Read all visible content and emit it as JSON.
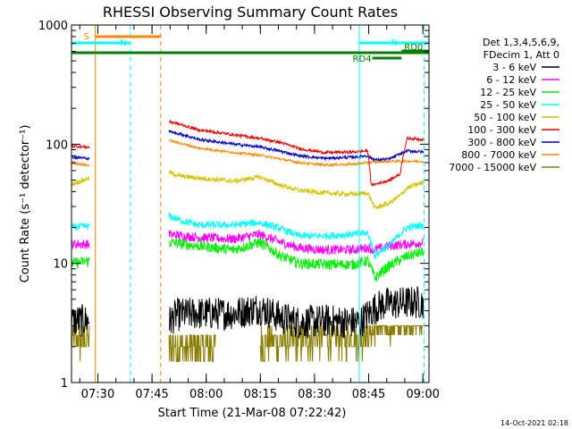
{
  "chart_data": {
    "type": "line",
    "title": "RHESSI Observing Summary Count Rates",
    "xlabel": "Start Time (21-Mar-08 07:22:42)",
    "ylabel": "Count Rate (s⁻¹ detector⁻¹)",
    "yscale": "log",
    "ylim": [
      1,
      1000
    ],
    "xlim_minutes": [
      0,
      99
    ],
    "x_tick_labels": [
      "07:30",
      "07:45",
      "08:00",
      "08:15",
      "08:30",
      "08:45",
      "09:00"
    ],
    "x_tick_minutes": [
      7.3,
      22.3,
      37.3,
      52.3,
      67.3,
      82.3,
      97.3
    ],
    "y_tick_labels": [
      "1",
      "10",
      "100",
      "1000"
    ],
    "y_tick_values": [
      1,
      10,
      100,
      1000
    ],
    "grid": false,
    "legend": {
      "position": "right",
      "header": [
        "Det 1,3,4,5,6,9,",
        "FDecim 1, Att 0"
      ],
      "entries": [
        {
          "label": "3 - 6 keV",
          "color": "#000000"
        },
        {
          "label": "6 - 12 keV",
          "color": "#ff00ff"
        },
        {
          "label": "12 - 25 keV",
          "color": "#00ee00"
        },
        {
          "label": "25 - 50 keV",
          "color": "#00ffff"
        },
        {
          "label": "50 - 100 keV",
          "color": "#d4c400"
        },
        {
          "label": "100 - 300 keV",
          "color": "#ee0000"
        },
        {
          "label": "300 - 800 keV",
          "color": "#0000cc"
        },
        {
          "label": "800 - 7000 keV",
          "color": "#ff8800"
        },
        {
          "label": "7000 - 15000 keV",
          "color": "#8a7d00"
        }
      ]
    },
    "intervals": [
      {
        "label": "S",
        "color": "#ff8800",
        "start": 6.6,
        "end": 24.7,
        "level": 1
      },
      {
        "label": "N",
        "color": "#00ffff",
        "start": 0,
        "end": 16.3,
        "level": 2
      },
      {
        "label": "N",
        "color": "#00ffff",
        "start": 79.7,
        "end": 99,
        "level": 2
      },
      {
        "label": "RD0",
        "color": "#008000",
        "start": 91.4,
        "end": 99,
        "level": 3
      },
      {
        "label": "",
        "color": "#008000",
        "start": 0,
        "end": 99,
        "level": 4
      },
      {
        "label": "RD4",
        "color": "#008000",
        "start": 83.3,
        "end": 91.4,
        "level": 5
      }
    ],
    "vlines": [
      {
        "x": 6.6,
        "color": "#ff8800",
        "style": "solid"
      },
      {
        "x": 16.3,
        "color": "#00ffff",
        "style": "dashed"
      },
      {
        "x": 24.7,
        "color": "#ff8800",
        "style": "dashed"
      },
      {
        "x": 79.7,
        "color": "#00ffff",
        "style": "solid"
      },
      {
        "x": 97.6,
        "color": "#00ffff",
        "style": "dashed"
      }
    ],
    "series": [
      {
        "name": "3 - 6 keV",
        "color": "#000000",
        "style": "noisy",
        "x": [
          0,
          5,
          5.01,
          27,
          29,
          35,
          45,
          52,
          58,
          63,
          70,
          78,
          80,
          82,
          84,
          87,
          90,
          93,
          97.5
        ],
        "y": [
          3.3,
          3.3,
          null,
          3.2,
          3.7,
          3.8,
          3.8,
          4.2,
          3.5,
          3.2,
          3.3,
          3.2,
          3.2,
          3.7,
          4.2,
          4.6,
          4.6,
          4.7,
          4.7
        ],
        "noise": 0.14
      },
      {
        "name": "6 - 12 keV",
        "color": "#ff00ff",
        "style": "noisy",
        "x": [
          0,
          5,
          5.01,
          27,
          35,
          45,
          52,
          58,
          63,
          70,
          78,
          82,
          84,
          88,
          93,
          97.5
        ],
        "y": [
          14.5,
          14.5,
          null,
          17.5,
          16.5,
          16,
          17.5,
          15,
          13.5,
          13,
          13,
          13.5,
          13,
          14,
          14.5,
          15
        ],
        "noise": 0.04
      },
      {
        "name": "12 - 25 keV",
        "color": "#00ee00",
        "style": "noisy",
        "x": [
          0,
          5,
          5.01,
          27,
          35,
          45,
          52,
          58,
          63,
          70,
          78,
          82,
          84,
          86,
          88,
          93,
          97.5
        ],
        "y": [
          10,
          10.5,
          null,
          15,
          14,
          13,
          15,
          11.5,
          10,
          9.8,
          9.8,
          10.5,
          7.5,
          8.5,
          9.5,
          11.5,
          12.5
        ],
        "noise": 0.045
      },
      {
        "name": "25 - 50 keV",
        "color": "#00ffff",
        "style": "noisy",
        "x": [
          0,
          5,
          5.01,
          27,
          30,
          35,
          45,
          52,
          58,
          63,
          70,
          78,
          82,
          84,
          86,
          88,
          93,
          97.5
        ],
        "y": [
          20,
          20.5,
          null,
          25,
          23,
          21,
          21,
          22,
          19.5,
          17,
          17,
          17.5,
          18,
          11.5,
          13,
          14,
          20,
          21
        ],
        "noise": 0.03
      },
      {
        "name": "50 - 100 keV",
        "color": "#d4c400",
        "style": "noisy",
        "x": [
          0,
          5,
          5.01,
          27,
          30,
          35,
          45,
          52,
          58,
          63,
          70,
          78,
          82,
          84,
          88,
          91,
          93,
          97.5
        ],
        "y": [
          46,
          52,
          null,
          58,
          54,
          52,
          49,
          53,
          45,
          41,
          39,
          38,
          39,
          29,
          32,
          37,
          43,
          48
        ],
        "noise": 0.02
      },
      {
        "name": "100 - 300 keV",
        "color": "#ee0000",
        "style": "noisy",
        "x": [
          0,
          5,
          5.01,
          27,
          30,
          35,
          45,
          52,
          58,
          63,
          70,
          78,
          82,
          83,
          88,
          91,
          93,
          97.5
        ],
        "y": [
          97,
          94,
          null,
          155,
          147,
          132,
          120,
          112,
          103,
          92,
          85,
          86,
          88,
          45,
          50,
          56,
          112,
          110
        ],
        "noise": 0.012
      },
      {
        "name": "300 - 800 keV",
        "color": "#0000cc",
        "style": "noisy",
        "x": [
          0,
          5,
          5.01,
          27,
          30,
          35,
          45,
          52,
          58,
          63,
          70,
          78,
          82,
          84,
          88,
          93,
          97.5
        ],
        "y": [
          78,
          76,
          null,
          128,
          122,
          110,
          100,
          95,
          87,
          80,
          76,
          78,
          80,
          74,
          75,
          88,
          86
        ],
        "noise": 0.012
      },
      {
        "name": "800 - 7000 keV",
        "color": "#ff8800",
        "style": "noisy",
        "x": [
          0,
          5,
          5.01,
          27,
          30,
          35,
          45,
          52,
          58,
          63,
          70,
          78,
          82,
          84,
          88,
          93,
          97.5
        ],
        "y": [
          70,
          66,
          null,
          108,
          102,
          93,
          85,
          81,
          75,
          70,
          67,
          68,
          70,
          71,
          72,
          72,
          72
        ],
        "noise": 0.01
      },
      {
        "name": "7000 - 15000 keV",
        "color": "#8a7d00",
        "style": "quantized",
        "x": [
          0,
          5,
          5.01,
          27,
          40,
          40.01,
          52,
          52.01,
          63,
          70,
          80,
          84,
          97.5
        ],
        "y": [
          2.3,
          2.3,
          null,
          2,
          2,
          null,
          2.2,
          2.2,
          2.3,
          2.4,
          2.4,
          2.8,
          3.2
        ],
        "levels": [
          1,
          1.5,
          2,
          2.5,
          3
        ],
        "noise": 0.2
      }
    ],
    "footer_date": "14-Oct-2021 02:18"
  }
}
